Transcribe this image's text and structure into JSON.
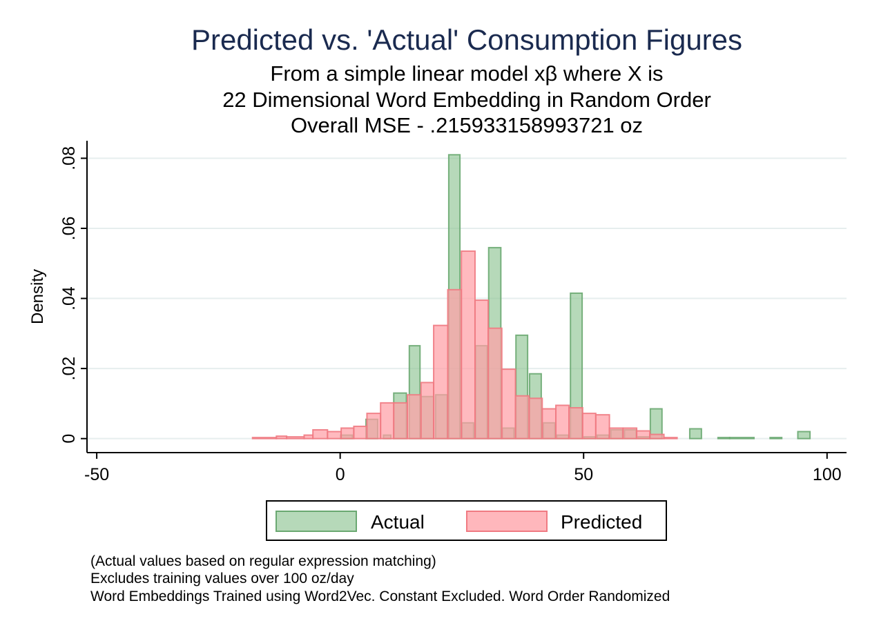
{
  "chart_data": {
    "type": "bar",
    "title": "Predicted vs. 'Actual' Consumption Figures",
    "subtitles": [
      "From a simple linear model xβ where X is",
      "22 Dimensional Word Embedding in Random Order",
      "Overall MSE - .215933158993721 oz"
    ],
    "xlabel": "",
    "ylabel": "Density",
    "xlim": [
      -52,
      104
    ],
    "ylim": [
      -0.004,
      0.085
    ],
    "x_ticks": [
      -50,
      0,
      50,
      100
    ],
    "x_tick_labels": [
      "-50",
      "0",
      "50",
      "100"
    ],
    "y_ticks": [
      0,
      0.02,
      0.04,
      0.06,
      0.08
    ],
    "y_tick_labels": [
      "0",
      ".02",
      ".04",
      ".06",
      ".08"
    ],
    "grid": true,
    "legend": {
      "position": "bottom",
      "entries": [
        "Actual",
        "Predicted"
      ]
    },
    "series": [
      {
        "name": "Actual",
        "color": "#8fc494",
        "stroke": "#6aa871",
        "bins": [
          {
            "x0": 0.1,
            "x1": 2.5,
            "y": 0.001
          },
          {
            "x0": 5.3,
            "x1": 7.7,
            "y": 0.0055
          },
          {
            "x0": 8.9,
            "x1": 10.4,
            "y": 0.001
          },
          {
            "x0": 11.0,
            "x1": 13.6,
            "y": 0.013
          },
          {
            "x0": 14.2,
            "x1": 16.4,
            "y": 0.0265
          },
          {
            "x0": 16.6,
            "x1": 19.2,
            "y": 0.012
          },
          {
            "x0": 19.6,
            "x1": 22.0,
            "y": 0.0125
          },
          {
            "x0": 22.3,
            "x1": 24.6,
            "y": 0.081
          },
          {
            "x0": 25.0,
            "x1": 27.4,
            "y": 0.0045
          },
          {
            "x0": 27.8,
            "x1": 30.2,
            "y": 0.0265
          },
          {
            "x0": 30.5,
            "x1": 33.0,
            "y": 0.0545
          },
          {
            "x0": 33.3,
            "x1": 35.7,
            "y": 0.003
          },
          {
            "x0": 36.1,
            "x1": 38.5,
            "y": 0.0295
          },
          {
            "x0": 38.9,
            "x1": 41.3,
            "y": 0.0185
          },
          {
            "x0": 41.7,
            "x1": 44.1,
            "y": 0.0045
          },
          {
            "x0": 44.5,
            "x1": 46.9,
            "y": 0.001
          },
          {
            "x0": 47.3,
            "x1": 49.7,
            "y": 0.0415
          },
          {
            "x0": 50.1,
            "x1": 52.4,
            "y": 0.0005
          },
          {
            "x0": 52.8,
            "x1": 55.2,
            "y": 0.001
          },
          {
            "x0": 55.6,
            "x1": 58.0,
            "y": 0.0025
          },
          {
            "x0": 58.4,
            "x1": 60.8,
            "y": 0.0025
          },
          {
            "x0": 61.2,
            "x1": 63.6,
            "y": 0.0005
          },
          {
            "x0": 63.7,
            "x1": 66.1,
            "y": 0.0085
          },
          {
            "x0": 71.8,
            "x1": 74.2,
            "y": 0.0028
          },
          {
            "x0": 77.6,
            "x1": 80.0,
            "y": 0.0003
          },
          {
            "x0": 80.0,
            "x1": 85.0,
            "y": 0.0003
          },
          {
            "x0": 88.3,
            "x1": 90.7,
            "y": 0.0003
          },
          {
            "x0": 94.0,
            "x1": 96.5,
            "y": 0.002
          }
        ]
      },
      {
        "name": "Predicted",
        "color": "#ff9fa6",
        "stroke": "#f07a82",
        "bins": [
          {
            "x0": -18.0,
            "x1": -13.1,
            "y": 0.0003
          },
          {
            "x0": -13.1,
            "x1": -11.0,
            "y": 0.0007
          },
          {
            "x0": -11.0,
            "x1": -7.4,
            "y": 0.0005
          },
          {
            "x0": -7.4,
            "x1": -5.6,
            "y": 0.001
          },
          {
            "x0": -5.6,
            "x1": -2.6,
            "y": 0.0025
          },
          {
            "x0": -2.6,
            "x1": 0.2,
            "y": 0.002
          },
          {
            "x0": 0.2,
            "x1": 2.8,
            "y": 0.003
          },
          {
            "x0": 2.8,
            "x1": 5.5,
            "y": 0.0035
          },
          {
            "x0": 5.5,
            "x1": 8.3,
            "y": 0.0072
          },
          {
            "x0": 8.3,
            "x1": 11.0,
            "y": 0.0102
          },
          {
            "x0": 11.0,
            "x1": 13.8,
            "y": 0.0102
          },
          {
            "x0": 13.8,
            "x1": 16.6,
            "y": 0.0125
          },
          {
            "x0": 16.6,
            "x1": 19.2,
            "y": 0.016
          },
          {
            "x0": 19.2,
            "x1": 22.1,
            "y": 0.0323
          },
          {
            "x0": 22.1,
            "x1": 24.9,
            "y": 0.0425
          },
          {
            "x0": 24.9,
            "x1": 27.7,
            "y": 0.0535
          },
          {
            "x0": 27.7,
            "x1": 30.4,
            "y": 0.0395
          },
          {
            "x0": 30.4,
            "x1": 33.2,
            "y": 0.0315
          },
          {
            "x0": 33.2,
            "x1": 36.0,
            "y": 0.0198
          },
          {
            "x0": 36.0,
            "x1": 38.8,
            "y": 0.0122
          },
          {
            "x0": 38.8,
            "x1": 41.5,
            "y": 0.0115
          },
          {
            "x0": 41.5,
            "x1": 44.3,
            "y": 0.0085
          },
          {
            "x0": 44.3,
            "x1": 47.0,
            "y": 0.0095
          },
          {
            "x0": 47.0,
            "x1": 49.8,
            "y": 0.0088
          },
          {
            "x0": 49.8,
            "x1": 52.5,
            "y": 0.0072
          },
          {
            "x0": 52.5,
            "x1": 55.3,
            "y": 0.0068
          },
          {
            "x0": 55.3,
            "x1": 58.1,
            "y": 0.003
          },
          {
            "x0": 58.1,
            "x1": 60.9,
            "y": 0.003
          },
          {
            "x0": 60.9,
            "x1": 63.6,
            "y": 0.0022
          },
          {
            "x0": 63.6,
            "x1": 66.5,
            "y": 0.0012
          },
          {
            "x0": 66.5,
            "x1": 69.2,
            "y": 0.0003
          }
        ]
      }
    ],
    "notes": [
      "(Actual values based on regular expression matching)",
      "Excludes training values over 100 oz/day",
      "Word Embeddings Trained using Word2Vec.  Constant Excluded.  Word Order Randomized"
    ]
  }
}
